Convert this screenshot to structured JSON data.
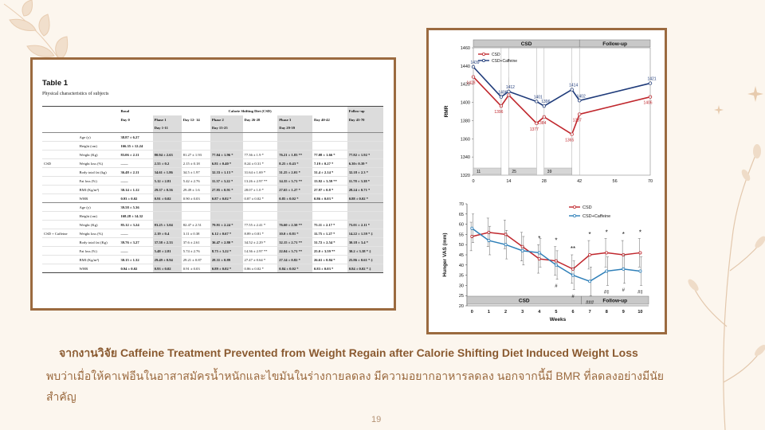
{
  "slide": {
    "caption_title": "จากงานวิจัย Caffeine Treatment Prevented from Weight Regain after Calorie Shifting Diet Induced Weight Loss",
    "caption_body": "พบว่าเมื่อให้คาเฟอีนในอาสาสมัครน้ำหนักและไขมันในร่างกายลดลง มีความอยากอาหารลดลง นอกจากนี้มี BMR ที่ลดลงอย่างมีนัยสำคัญ",
    "page_number": "19",
    "colors": {
      "frame": "#9b6a3f",
      "caption": "#9b6a3f",
      "csd": "#c0272d",
      "caffeine_bmr": "#1f3b7a",
      "caffeine_hunger": "#2e7fb8"
    }
  },
  "table": {
    "title": "Table 1",
    "subtitle": "Physical characteristics of subjects",
    "header1": [
      "Basal",
      "Calorie Shifting Diet (CSD)",
      "Follow-up"
    ],
    "header2": [
      "Day 0",
      "Phase 1",
      "Day 12- 14",
      "Phase 2",
      "Day 26-28",
      "Phase 3",
      "Day 40-42",
      "Day 43-70"
    ],
    "header3": [
      "",
      "Day 1-11",
      "",
      "Day 15-25",
      "",
      "Day 29-39",
      "",
      ""
    ],
    "groups": [
      {
        "label": "CSD",
        "rows": [
          {
            "name": "Age (y)",
            "values": [
              "38.87 ± 6.27",
              "",
              "",
              "",
              "",
              "",
              "",
              ""
            ]
          },
          {
            "name": "Height (cm)",
            "values": [
              "166.35 ± 12.24",
              "",
              "",
              "",
              "",
              "",
              "",
              ""
            ]
          },
          {
            "name": "Weight (Kg)",
            "values": [
              "83.06 ± 2.11",
              "80.94 ± 2.63",
              "81.27 ± 1.93",
              "77.04 ± 1.96 *",
              "77.36 ± 1.9 *",
              "76.21 ± 1.83 **",
              "77.08 ± 1.66 *",
              "77.82 ± 1.92 *"
            ]
          },
          {
            "name": "Weight loss (%)",
            "values": [
              "——",
              "2.55 ± 0.2",
              "2.15 ± 0.18",
              "6.81 ± 0.40 *",
              "8.24 ± 0.31 *",
              "8.25 ± 0.43 *",
              "7.19 ± 0.27 *",
              "6.30± 0.39 *"
            ]
          },
          {
            "name": "Body total fat (kg)",
            "values": [
              "36.48 ± 2.11",
              "34.61 ± 1.86",
              "34.5 ± 1.97",
              "32.33 ± 1.13 *",
              "31.64 ± 1.69 *",
              "31.25 ± 2.01 *",
              "31.4 ± 2.14 *",
              "32.18 ± 2.3 *"
            ]
          },
          {
            "name": "Fat loss (%)",
            "values": [
              "——",
              "5.12 ± 2.81",
              "5.42 ± 2.76",
              "11.37 ± 3.22 *",
              "13.26 ± 2.97 **",
              "14.35 ± 3.71 **",
              "13.92 ± 3.59 **",
              "11.78 ± 3.38 *"
            ]
          },
          {
            "name": "BMI (Kg/m²)",
            "values": [
              "30.14 ± 1.12",
              "29.37 ± 0.56",
              "29.49 ± 1.6",
              "27.95 ± 0.91 *",
              "28.07 ± 1.0 *",
              "27.65 ± 1.27 *",
              "27.97 ± 0.8 *",
              "28.24 ± 0.71 *"
            ]
          },
          {
            "name": "WHR",
            "values": [
              "0.93 ± 0.02",
              "0.91 ± 0.02",
              "0.90 ± 0.03",
              "0.87 ± 0.02 *",
              "0.87 ± 0.02 *",
              "0.85 ± 0.02 *",
              "0.86 ± 0.03 *",
              "0.88 ± 0.02 *"
            ]
          }
        ]
      },
      {
        "label": "CSD + Caffeine",
        "rows": [
          {
            "name": "Age (y)",
            "values": [
              "39.58 ± 5.36",
              "",
              "",
              "",
              "",
              "",
              "",
              ""
            ]
          },
          {
            "name": "Height (cm)",
            "values": [
              "168.28 ± 14.32",
              "",
              "",
              "",
              "",
              "",
              "",
              ""
            ]
          },
          {
            "name": "Weight (Kg)",
            "values": [
              "85.12 ± 3.24",
              "83.25 ± 3.04",
              "82.47 ± 2.51",
              "79.91 ± 2.24 *",
              "77.55 ± 2.41 *",
              "76.60 ± 2.50 **",
              "75.11 ± 2.17 *",
              "73.01 ± 2.11 *"
            ]
          },
          {
            "name": "Weight loss (%)",
            "values": [
              "——",
              "2.19 ± 0.4",
              "3.11 ± 0.38",
              "6.12 ± 0.67 *",
              "8.89 ± 0.81 *",
              "10.0 ± 0.81 *",
              "11.75 ± 1.27 *",
              "14.22 ± 1.59 * ‡"
            ]
          },
          {
            "name": "Body total fat (Kg)",
            "values": [
              "39.76 ± 3.27",
              "37.58 ± 2.33",
              "37.6 ± 2.61",
              "36.47 ± 2.80 *",
              "34.52 ± 2.29 *",
              "32.15 ± 2.71 **",
              "31.72 ± 2.54 *",
              "30.18 ± 3.4 *"
            ]
          },
          {
            "name": "Fat loss (%)",
            "values": [
              "——",
              "5.48 ± 2.81",
              "5.74 ± 2.76",
              "8.75 ± 3.22 *",
              "14.36 ± 2.97 **",
              "22.04 ± 3.71 **",
              "25.0 ± 3.59 **",
              "30.2 ± 3.38 * ‡"
            ]
          },
          {
            "name": "BMI (Kg/m²)",
            "values": [
              "30.15 ± 1.32",
              "29.49 ± 0.94",
              "29.21 ± 0.87",
              "28.31 ± 0.89",
              "27.47 ± 0.64 *",
              "27.14 ± 0.82 *",
              "26.61 ± 0.84 *",
              "25.86 ± 0.61 * ‡"
            ]
          },
          {
            "name": "WHR",
            "values": [
              "0.94 ± 0.02",
              "0.93 ± 0.02",
              "0.91 ± 0.03",
              "0.89 ± 0.02 *",
              "0.86 ± 0.02 *",
              "0.84 ± 0.02 *",
              "0.83 ± 0.03 *",
              "0.84 ± 0.02 * ‡"
            ]
          }
        ]
      }
    ]
  },
  "chart_data": [
    {
      "type": "line",
      "ylabel": "RMR",
      "x": [
        0,
        11,
        14,
        25,
        28,
        39,
        42,
        70
      ],
      "xticks": [
        0,
        14,
        28,
        42,
        56,
        70
      ],
      "ylim": [
        1320,
        1460
      ],
      "yticks": [
        1320,
        1340,
        1360,
        1380,
        1400,
        1420,
        1440,
        1460
      ],
      "legend": "top-left",
      "grid": false,
      "phase_bar": {
        "csd_label": "CSD",
        "follow_label": "Follow-up",
        "split_x": 42
      },
      "phase_day_labels": [
        "11",
        "25",
        "39"
      ],
      "series": [
        {
          "name": "CSD",
          "color": "#c0272d",
          "values": [
            1428,
            1396,
            1408,
            1377,
            1384,
            1365,
            1387,
            1406
          ],
          "labels": [
            "1428",
            "1396",
            "",
            "1377",
            "1384",
            "1365",
            "1387",
            "1406"
          ]
        },
        {
          "name": "CSD+Caffeine",
          "color": "#1f3b7a",
          "values": [
            1439,
            1406,
            1412,
            1401,
            1396,
            1414,
            1402,
            1421
          ],
          "labels": [
            "1439",
            "1406",
            "1412",
            "1401",
            "1396",
            "1414",
            "1402",
            "1421"
          ]
        }
      ]
    },
    {
      "type": "line",
      "xlabel": "Weeks",
      "ylabel": "Hunger VAS (mm)",
      "x": [
        0,
        1,
        2,
        3,
        4,
        5,
        6,
        7,
        8,
        9,
        10
      ],
      "ylim": [
        20,
        70
      ],
      "yticks": [
        20,
        25,
        30,
        35,
        40,
        45,
        50,
        55,
        60,
        65,
        70
      ],
      "legend": "top-right",
      "grid": false,
      "phase_bar": {
        "csd_label": "CSD",
        "follow_label": "Follow-up",
        "split_x": 6.5
      },
      "series": [
        {
          "name": "CSD",
          "color": "#c0272d",
          "values": [
            54,
            56,
            55,
            49,
            43,
            42,
            38,
            45,
            46,
            45,
            46
          ]
        },
        {
          "name": "CSD+Caffeine",
          "color": "#2e7fb8",
          "values": [
            58,
            52,
            50,
            47,
            46,
            40,
            35,
            32,
            37,
            38,
            37
          ]
        }
      ],
      "markers_top": [
        {
          "x": 4,
          "text": "*"
        },
        {
          "x": 5,
          "text": "*"
        },
        {
          "x": 6,
          "text": "**"
        },
        {
          "x": 7,
          "text": "*"
        },
        {
          "x": 8,
          "text": "*"
        },
        {
          "x": 9,
          "text": "*"
        },
        {
          "x": 10,
          "text": "*"
        }
      ],
      "markers_bottom": [
        {
          "x": 5,
          "text": "#"
        },
        {
          "x": 6,
          "text": "#"
        },
        {
          "x": 7,
          "text": "###"
        },
        {
          "x": 8,
          "text": "#‡"
        },
        {
          "x": 9,
          "text": "#"
        },
        {
          "x": 10,
          "text": "#‡"
        }
      ]
    }
  ]
}
